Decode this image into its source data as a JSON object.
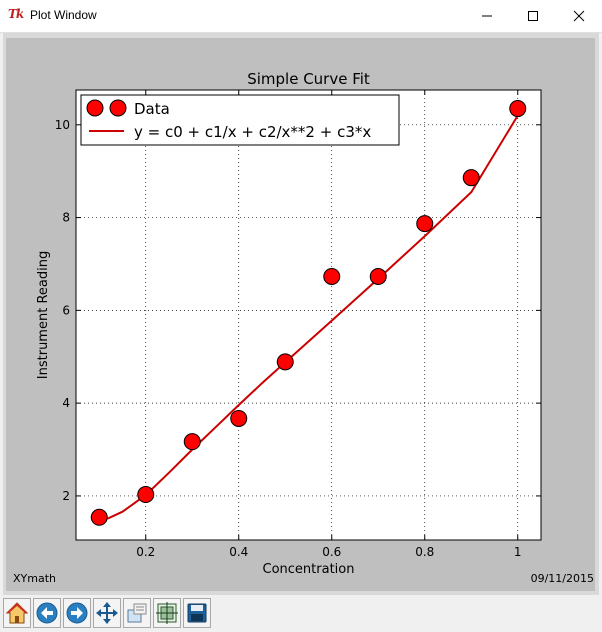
{
  "window": {
    "title": "Plot Window",
    "icon_label": "Tk"
  },
  "footer": {
    "left": "XYmath",
    "right": "09/11/2015"
  },
  "toolbar": {
    "buttons": [
      "home-icon",
      "back-arrow-icon",
      "forward-arrow-icon",
      "pan-icon",
      "zoom-icon",
      "subplots-icon",
      "save-icon"
    ]
  },
  "colors": {
    "plot_bg": "#ffffff",
    "canvas_bg": "#bfbfbf",
    "marker_fill": "#ff0000",
    "line": "#cc0000"
  },
  "chart_data": {
    "type": "scatter",
    "title": "Simple Curve Fit",
    "xlabel": "Concentration",
    "ylabel": "Instrument Reading",
    "xlim": [
      0.05,
      1.05
    ],
    "ylim": [
      1.05,
      10.75
    ],
    "xticks": [
      0.2,
      0.4,
      0.6,
      0.8,
      1.0
    ],
    "xtick_labels": [
      "0.2",
      "0.4",
      "0.6",
      "0.8",
      "1"
    ],
    "yticks": [
      2,
      4,
      6,
      8,
      10
    ],
    "ytick_labels": [
      "2",
      "4",
      "6",
      "8",
      "10"
    ],
    "grid": true,
    "legend_position": "top-left",
    "series": [
      {
        "name": "Data",
        "kind": "markers",
        "x": [
          0.1,
          0.2,
          0.3,
          0.4,
          0.5,
          0.6,
          0.7,
          0.8,
          0.9,
          1.0
        ],
        "y": [
          1.54,
          2.03,
          3.17,
          3.67,
          4.89,
          6.73,
          6.73,
          7.87,
          8.86,
          10.35
        ]
      },
      {
        "name": "y = c0 + c1/x + c2/x**2 + c3*x",
        "kind": "line",
        "x": [
          0.1,
          0.12,
          0.15,
          0.2,
          0.25,
          0.3,
          0.35,
          0.4,
          0.45,
          0.5,
          0.6,
          0.7,
          0.8,
          0.9,
          1.0
        ],
        "y": [
          1.48,
          1.52,
          1.66,
          2.02,
          2.5,
          3.0,
          3.48,
          3.96,
          4.43,
          4.88,
          5.78,
          6.68,
          7.6,
          8.55,
          10.2
        ]
      }
    ]
  }
}
